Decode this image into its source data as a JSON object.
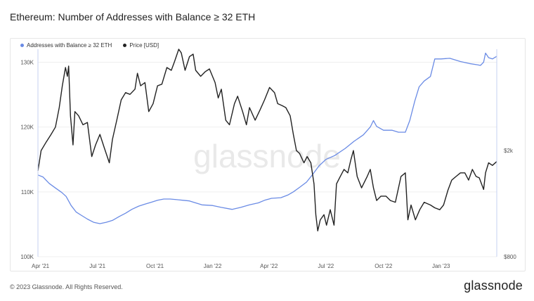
{
  "title": "Ethereum: Number of Addresses with Balance ≥ 32 ETH",
  "footer": {
    "copyright": "© 2023 Glassnode. All Rights Reserved.",
    "logo": "glassnode"
  },
  "watermark": "glassnode",
  "colors": {
    "addresses": "#6a8be5",
    "price": "#222222",
    "grid": "#efefef"
  },
  "chart_data": {
    "type": "line",
    "grid": true,
    "legend_position": "top-left",
    "x_ticks": [
      "Apr '21",
      "Jul '21",
      "Oct '21",
      "Jan '22",
      "Apr '22",
      "Jul '22",
      "Oct '22",
      "Jan '23"
    ],
    "x_tick_dates": [
      "2021-04-01",
      "2021-07-01",
      "2021-10-01",
      "2022-01-01",
      "2022-04-01",
      "2022-07-01",
      "2022-10-01",
      "2023-01-01"
    ],
    "x_range": [
      "2021-03-28",
      "2023-03-31"
    ],
    "y_left": {
      "ticks": [
        "100K",
        "110K",
        "120K",
        "130K"
      ],
      "tick_values": [
        100000,
        110000,
        120000,
        130000
      ],
      "range": [
        100000,
        132000
      ]
    },
    "y_right": {
      "scale": "log",
      "ticks": [
        "$800",
        "$2k"
      ],
      "tick_values": [
        800,
        2000
      ],
      "range": [
        800,
        4800
      ]
    },
    "series": [
      {
        "name": "Addresses with Balance ≥ 32 ETH",
        "axis": "left",
        "color": "#6a8be5",
        "points": [
          [
            "2021-03-28",
            112600
          ],
          [
            "2021-04-05",
            112300
          ],
          [
            "2021-04-15",
            111300
          ],
          [
            "2021-04-25",
            110600
          ],
          [
            "2021-05-05",
            109900
          ],
          [
            "2021-05-12",
            109300
          ],
          [
            "2021-05-20",
            107900
          ],
          [
            "2021-05-28",
            106900
          ],
          [
            "2021-06-05",
            106400
          ],
          [
            "2021-06-15",
            105800
          ],
          [
            "2021-06-25",
            105300
          ],
          [
            "2021-07-05",
            105100
          ],
          [
            "2021-07-15",
            105300
          ],
          [
            "2021-07-25",
            105600
          ],
          [
            "2021-08-05",
            106200
          ],
          [
            "2021-08-15",
            106700
          ],
          [
            "2021-08-25",
            107300
          ],
          [
            "2021-09-05",
            107800
          ],
          [
            "2021-09-15",
            108100
          ],
          [
            "2021-09-25",
            108400
          ],
          [
            "2021-10-05",
            108700
          ],
          [
            "2021-10-15",
            108900
          ],
          [
            "2021-10-25",
            108900
          ],
          [
            "2021-11-05",
            108800
          ],
          [
            "2021-11-15",
            108700
          ],
          [
            "2021-11-25",
            108600
          ],
          [
            "2021-12-05",
            108300
          ],
          [
            "2021-12-15",
            108000
          ],
          [
            "2022-01-01",
            107900
          ],
          [
            "2022-01-15",
            107600
          ],
          [
            "2022-02-01",
            107300
          ],
          [
            "2022-02-15",
            107600
          ],
          [
            "2022-03-01",
            108000
          ],
          [
            "2022-03-15",
            108300
          ],
          [
            "2022-03-25",
            108700
          ],
          [
            "2022-04-05",
            109000
          ],
          [
            "2022-04-20",
            109100
          ],
          [
            "2022-05-01",
            109500
          ],
          [
            "2022-05-10",
            110000
          ],
          [
            "2022-05-20",
            110700
          ],
          [
            "2022-05-31",
            111500
          ],
          [
            "2022-06-10",
            112700
          ],
          [
            "2022-06-20",
            114000
          ],
          [
            "2022-07-01",
            115000
          ],
          [
            "2022-07-15",
            115600
          ],
          [
            "2022-08-01",
            116700
          ],
          [
            "2022-08-15",
            117800
          ],
          [
            "2022-08-30",
            118800
          ],
          [
            "2022-09-10",
            120000
          ],
          [
            "2022-09-15",
            121000
          ],
          [
            "2022-09-20",
            120100
          ],
          [
            "2022-10-01",
            119500
          ],
          [
            "2022-10-15",
            119500
          ],
          [
            "2022-10-25",
            119200
          ],
          [
            "2022-11-05",
            119200
          ],
          [
            "2022-11-12",
            121000
          ],
          [
            "2022-11-20",
            124000
          ],
          [
            "2022-11-27",
            126200
          ],
          [
            "2022-12-05",
            127100
          ],
          [
            "2022-12-15",
            127800
          ],
          [
            "2022-12-22",
            130500
          ],
          [
            "2023-01-01",
            130500
          ],
          [
            "2023-01-15",
            130600
          ],
          [
            "2023-02-01",
            130100
          ],
          [
            "2023-02-15",
            129800
          ],
          [
            "2023-02-28",
            129600
          ],
          [
            "2023-03-05",
            129500
          ],
          [
            "2023-03-10",
            130000
          ],
          [
            "2023-03-13",
            131400
          ],
          [
            "2023-03-18",
            130700
          ],
          [
            "2023-03-24",
            130500
          ],
          [
            "2023-03-31",
            130900
          ]
        ]
      },
      {
        "name": "Price [USD]",
        "axis": "right",
        "color": "#222222",
        "points": [
          [
            "2021-03-28",
            1680
          ],
          [
            "2021-04-02",
            2000
          ],
          [
            "2021-04-10",
            2150
          ],
          [
            "2021-04-18",
            2300
          ],
          [
            "2021-04-25",
            2450
          ],
          [
            "2021-05-01",
            2900
          ],
          [
            "2021-05-06",
            3500
          ],
          [
            "2021-05-11",
            4100
          ],
          [
            "2021-05-14",
            3800
          ],
          [
            "2021-05-16",
            4150
          ],
          [
            "2021-05-19",
            2700
          ],
          [
            "2021-05-23",
            2100
          ],
          [
            "2021-05-26",
            2800
          ],
          [
            "2021-06-01",
            2700
          ],
          [
            "2021-06-08",
            2500
          ],
          [
            "2021-06-15",
            2550
          ],
          [
            "2021-06-22",
            1900
          ],
          [
            "2021-06-28",
            2100
          ],
          [
            "2021-07-05",
            2300
          ],
          [
            "2021-07-12",
            2050
          ],
          [
            "2021-07-20",
            1800
          ],
          [
            "2021-07-25",
            2200
          ],
          [
            "2021-08-01",
            2600
          ],
          [
            "2021-08-08",
            3100
          ],
          [
            "2021-08-15",
            3300
          ],
          [
            "2021-08-22",
            3250
          ],
          [
            "2021-08-30",
            3400
          ],
          [
            "2021-09-03",
            3900
          ],
          [
            "2021-09-08",
            3500
          ],
          [
            "2021-09-15",
            3600
          ],
          [
            "2021-09-21",
            2800
          ],
          [
            "2021-09-28",
            3000
          ],
          [
            "2021-10-05",
            3500
          ],
          [
            "2021-10-12",
            3550
          ],
          [
            "2021-10-20",
            4100
          ],
          [
            "2021-10-27",
            4000
          ],
          [
            "2021-11-01",
            4300
          ],
          [
            "2021-11-08",
            4800
          ],
          [
            "2021-11-12",
            4650
          ],
          [
            "2021-11-18",
            4000
          ],
          [
            "2021-11-25",
            4500
          ],
          [
            "2021-12-01",
            4600
          ],
          [
            "2021-12-05",
            4000
          ],
          [
            "2021-12-13",
            3800
          ],
          [
            "2021-12-20",
            3950
          ],
          [
            "2021-12-27",
            4050
          ],
          [
            "2022-01-05",
            3600
          ],
          [
            "2022-01-10",
            3150
          ],
          [
            "2022-01-15",
            3400
          ],
          [
            "2022-01-22",
            2600
          ],
          [
            "2022-01-28",
            2500
          ],
          [
            "2022-02-05",
            3000
          ],
          [
            "2022-02-10",
            3200
          ],
          [
            "2022-02-18",
            2800
          ],
          [
            "2022-02-24",
            2500
          ],
          [
            "2022-03-01",
            2900
          ],
          [
            "2022-03-10",
            2600
          ],
          [
            "2022-03-18",
            2850
          ],
          [
            "2022-03-25",
            3100
          ],
          [
            "2022-04-02",
            3450
          ],
          [
            "2022-04-10",
            3300
          ],
          [
            "2022-04-15",
            3000
          ],
          [
            "2022-04-22",
            2950
          ],
          [
            "2022-04-28",
            2900
          ],
          [
            "2022-05-05",
            2700
          ],
          [
            "2022-05-10",
            2300
          ],
          [
            "2022-05-15",
            2000
          ],
          [
            "2022-05-20",
            1950
          ],
          [
            "2022-05-27",
            1800
          ],
          [
            "2022-06-01",
            1900
          ],
          [
            "2022-06-07",
            1800
          ],
          [
            "2022-06-12",
            1500
          ],
          [
            "2022-06-15",
            1150
          ],
          [
            "2022-06-18",
            1000
          ],
          [
            "2022-06-22",
            1100
          ],
          [
            "2022-06-28",
            1150
          ],
          [
            "2022-07-02",
            1050
          ],
          [
            "2022-07-08",
            1200
          ],
          [
            "2022-07-14",
            1050
          ],
          [
            "2022-07-18",
            1500
          ],
          [
            "2022-07-24",
            1600
          ],
          [
            "2022-07-30",
            1700
          ],
          [
            "2022-08-05",
            1650
          ],
          [
            "2022-08-10",
            1850
          ],
          [
            "2022-08-14",
            2000
          ],
          [
            "2022-08-20",
            1600
          ],
          [
            "2022-08-27",
            1450
          ],
          [
            "2022-09-05",
            1600
          ],
          [
            "2022-09-10",
            1700
          ],
          [
            "2022-09-15",
            1450
          ],
          [
            "2022-09-20",
            1300
          ],
          [
            "2022-09-27",
            1350
          ],
          [
            "2022-10-05",
            1350
          ],
          [
            "2022-10-12",
            1300
          ],
          [
            "2022-10-20",
            1280
          ],
          [
            "2022-10-29",
            1600
          ],
          [
            "2022-11-05",
            1650
          ],
          [
            "2022-11-09",
            1100
          ],
          [
            "2022-11-14",
            1250
          ],
          [
            "2022-11-21",
            1100
          ],
          [
            "2022-11-28",
            1200
          ],
          [
            "2022-12-05",
            1280
          ],
          [
            "2022-12-15",
            1250
          ],
          [
            "2022-12-22",
            1220
          ],
          [
            "2022-12-30",
            1200
          ],
          [
            "2023-01-05",
            1250
          ],
          [
            "2023-01-12",
            1420
          ],
          [
            "2023-01-18",
            1550
          ],
          [
            "2023-01-25",
            1600
          ],
          [
            "2023-02-01",
            1650
          ],
          [
            "2023-02-08",
            1650
          ],
          [
            "2023-02-14",
            1550
          ],
          [
            "2023-02-20",
            1700
          ],
          [
            "2023-02-26",
            1600
          ],
          [
            "2023-03-03",
            1580
          ],
          [
            "2023-03-10",
            1430
          ],
          [
            "2023-03-13",
            1650
          ],
          [
            "2023-03-18",
            1800
          ],
          [
            "2023-03-24",
            1760
          ],
          [
            "2023-03-31",
            1820
          ]
        ]
      }
    ]
  }
}
